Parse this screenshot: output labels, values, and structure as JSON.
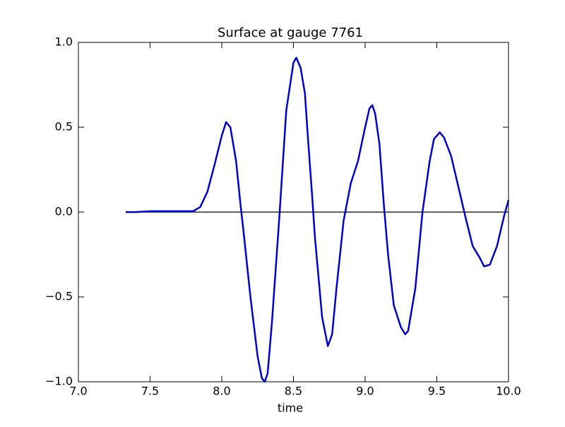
{
  "chart_data": {
    "type": "line",
    "title": "Surface at gauge 7761",
    "x_label": "time",
    "x": [
      7.33,
      7.4,
      7.5,
      7.6,
      7.7,
      7.8,
      7.85,
      7.9,
      7.95,
      8.0,
      8.03,
      8.06,
      8.1,
      8.13,
      8.15,
      8.2,
      8.25,
      8.28,
      8.3,
      8.32,
      8.35,
      8.4,
      8.45,
      8.5,
      8.52,
      8.55,
      8.58,
      8.6,
      8.63,
      8.65,
      8.7,
      8.74,
      8.77,
      8.8,
      8.85,
      8.9,
      8.95,
      9.0,
      9.03,
      9.05,
      9.07,
      9.1,
      9.13,
      9.16,
      9.2,
      9.25,
      9.28,
      9.3,
      9.35,
      9.4,
      9.45,
      9.48,
      9.52,
      9.55,
      9.6,
      9.65,
      9.7,
      9.75,
      9.8,
      9.83,
      9.87,
      9.92,
      9.97,
      10.0
    ],
    "series": [
      {
        "color": "#0000d0",
        "values": [
          0,
          0,
          0.005,
          0.005,
          0.005,
          0.005,
          0.03,
          0.12,
          0.28,
          0.45,
          0.53,
          0.5,
          0.3,
          0.05,
          -0.1,
          -0.5,
          -0.85,
          -0.98,
          -1.0,
          -0.95,
          -0.65,
          -0.05,
          0.6,
          0.88,
          0.91,
          0.85,
          0.7,
          0.45,
          0.1,
          -0.15,
          -0.62,
          -0.79,
          -0.72,
          -0.45,
          -0.05,
          0.17,
          0.3,
          0.5,
          0.61,
          0.63,
          0.58,
          0.4,
          0.05,
          -0.25,
          -0.55,
          -0.68,
          -0.72,
          -0.7,
          -0.45,
          0.0,
          0.3,
          0.43,
          0.47,
          0.44,
          0.33,
          0.15,
          -0.03,
          -0.2,
          -0.27,
          -0.32,
          -0.31,
          -0.2,
          -0.02,
          0.07
        ]
      }
    ],
    "reference_line": {
      "y": 0,
      "x_start": 7.33,
      "color": "#000000"
    },
    "xlim": [
      7,
      10
    ],
    "ylim": [
      -1,
      1
    ],
    "xticks": [
      {
        "value": 7,
        "label": "7.0"
      },
      7.5,
      {
        "value": 8,
        "label": "8.0"
      },
      8.5,
      {
        "value": 9,
        "label": "9.0"
      },
      9.5,
      {
        "value": 10,
        "label": "10.0"
      }
    ],
    "yticks": [
      {
        "value": -1,
        "label": "−1.0"
      },
      {
        "value": -0.5,
        "label": "−0.5"
      },
      {
        "value": 0,
        "label": "0.0"
      },
      0.5,
      {
        "value": 1,
        "label": "1.0"
      }
    ]
  }
}
